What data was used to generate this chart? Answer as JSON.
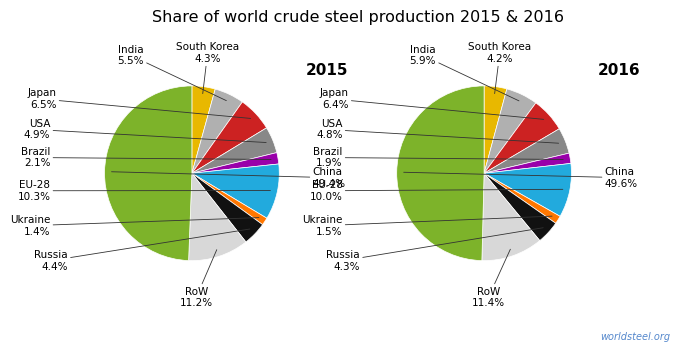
{
  "title": "Share of world crude steel production 2015 & 2016",
  "watermark": "worldsteel.org",
  "years": [
    "2015",
    "2016"
  ],
  "labels_ordered": [
    "South Korea",
    "India",
    "Japan",
    "USA",
    "Brazil",
    "EU-28",
    "Ukraine",
    "Russia",
    "RoW",
    "China"
  ],
  "values_2015": [
    4.3,
    5.5,
    6.5,
    4.9,
    2.1,
    10.3,
    1.4,
    4.4,
    11.2,
    49.4
  ],
  "values_2016": [
    4.2,
    5.9,
    6.4,
    4.8,
    1.9,
    10.0,
    1.5,
    4.3,
    11.4,
    49.6
  ],
  "colors_ordered": [
    "#e8b800",
    "#b0b0b0",
    "#cc2222",
    "#888888",
    "#9900aa",
    "#22aadd",
    "#ff7700",
    "#111111",
    "#d8d8d8",
    "#7db32a"
  ],
  "background_color": "#ffffff",
  "title_fontsize": 11.5,
  "label_fontsize": 7.5,
  "year_fontsize": 11,
  "watermark_color": "#5588cc"
}
